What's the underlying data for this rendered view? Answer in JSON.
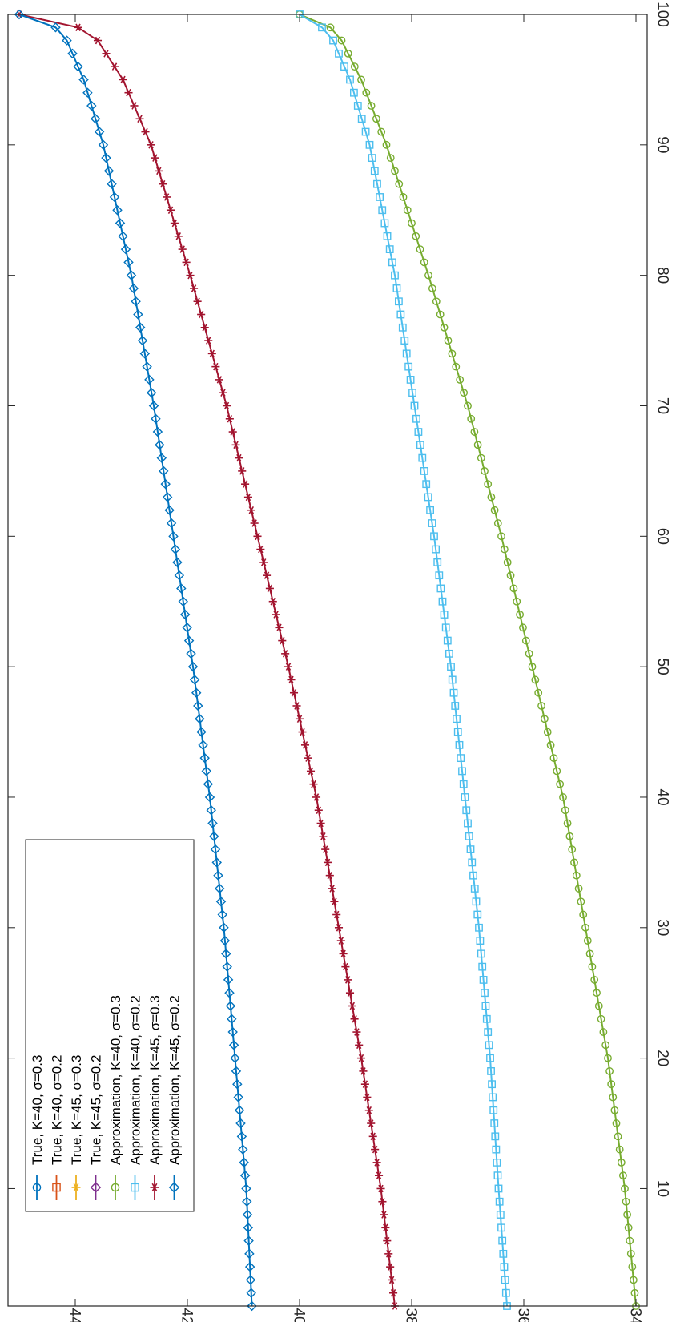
{
  "chart_data": {
    "type": "line",
    "orientation": "rotated-90-clockwise",
    "title": "",
    "xlabel": "",
    "ylabel": "",
    "xlim": [
      1,
      100
    ],
    "ylim": [
      33.8,
      45.2
    ],
    "x_ticks": [
      10,
      20,
      30,
      40,
      50,
      60,
      70,
      80,
      90,
      100
    ],
    "y_ticks": [
      34,
      36,
      38,
      40,
      42,
      44
    ],
    "grid": false,
    "legend_position": "bottom-left",
    "x_sampling": {
      "start": 1,
      "end": 100,
      "step": 1
    },
    "series": [
      {
        "name": "True, K=40, σ=0.3",
        "color": "#0072BD",
        "marker": "circle",
        "plotted": false
      },
      {
        "name": "True, K=40, σ=0.2",
        "color": "#D95319",
        "marker": "square",
        "plotted": false
      },
      {
        "name": "True, K=45, σ=0.3",
        "color": "#EDB120",
        "marker": "asterisk",
        "plotted": false
      },
      {
        "name": "True, K=45, σ=0.2",
        "color": "#7E2F8E",
        "marker": "diamond",
        "plotted": false
      },
      {
        "name": "Approximation, K=40, σ=0.3",
        "color": "#77AC30",
        "marker": "circle",
        "plotted": true,
        "anchors": [
          [
            1,
            34.0
          ],
          [
            10,
            34.2
          ],
          [
            20,
            34.5
          ],
          [
            30,
            34.9
          ],
          [
            40,
            35.3
          ],
          [
            50,
            35.85
          ],
          [
            60,
            36.4
          ],
          [
            70,
            37.0
          ],
          [
            80,
            37.7
          ],
          [
            90,
            38.45
          ],
          [
            95,
            38.9
          ],
          [
            98,
            39.25
          ],
          [
            99,
            39.45
          ],
          [
            100,
            40.0
          ]
        ]
      },
      {
        "name": "Approximation, K=40, σ=0.2",
        "color": "#4DBEEE",
        "marker": "square",
        "plotted": true,
        "anchors": [
          [
            1,
            36.3
          ],
          [
            10,
            36.45
          ],
          [
            20,
            36.6
          ],
          [
            30,
            36.8
          ],
          [
            40,
            37.05
          ],
          [
            50,
            37.3
          ],
          [
            60,
            37.6
          ],
          [
            70,
            37.95
          ],
          [
            80,
            38.3
          ],
          [
            90,
            38.75
          ],
          [
            95,
            39.1
          ],
          [
            98,
            39.4
          ],
          [
            99,
            39.6
          ],
          [
            100,
            40.0
          ]
        ]
      },
      {
        "name": "Approximation, K=45, σ=0.3",
        "color": "#A2142F",
        "marker": "asterisk",
        "plotted": true,
        "anchors": [
          [
            1,
            38.3
          ],
          [
            10,
            38.55
          ],
          [
            20,
            38.9
          ],
          [
            30,
            39.3
          ],
          [
            40,
            39.7
          ],
          [
            50,
            40.2
          ],
          [
            60,
            40.75
          ],
          [
            70,
            41.3
          ],
          [
            80,
            41.95
          ],
          [
            90,
            42.65
          ],
          [
            95,
            43.15
          ],
          [
            98,
            43.6
          ],
          [
            99,
            43.95
          ],
          [
            100,
            45.0
          ]
        ]
      },
      {
        "name": "Approximation, K=45, σ=0.2",
        "color": "#0072BD",
        "marker": "diamond",
        "plotted": true,
        "anchors": [
          [
            1,
            40.85
          ],
          [
            10,
            40.95
          ],
          [
            20,
            41.15
          ],
          [
            30,
            41.35
          ],
          [
            40,
            41.6
          ],
          [
            50,
            41.9
          ],
          [
            60,
            42.25
          ],
          [
            70,
            42.6
          ],
          [
            80,
            43.0
          ],
          [
            90,
            43.5
          ],
          [
            95,
            43.85
          ],
          [
            98,
            44.15
          ],
          [
            99,
            44.35
          ],
          [
            100,
            45.0
          ]
        ]
      }
    ]
  }
}
